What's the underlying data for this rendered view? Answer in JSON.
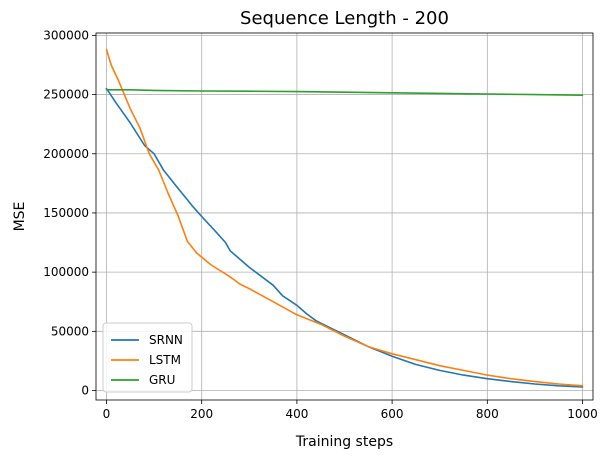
{
  "chart_data": {
    "type": "line",
    "title": "Sequence Length - 200",
    "xlabel": "Training steps",
    "ylabel": "MSE",
    "xlim": [
      -22,
      1022
    ],
    "ylim": [
      -8000,
      302000
    ],
    "xticks": [
      0,
      200,
      400,
      600,
      800,
      1000
    ],
    "yticks": [
      0,
      50000,
      100000,
      150000,
      200000,
      250000,
      300000
    ],
    "xtick_labels": [
      "0",
      "200",
      "400",
      "600",
      "800",
      "1000"
    ],
    "ytick_labels": [
      "0",
      "50000",
      "100000",
      "150000",
      "200000",
      "250000",
      "300000"
    ],
    "grid": true,
    "legend": {
      "position": "lower-left"
    },
    "series": [
      {
        "name": "SRNN",
        "color": "#1f77b4",
        "x": [
          0,
          20,
          50,
          80,
          100,
          120,
          150,
          180,
          200,
          230,
          250,
          260,
          300,
          350,
          370,
          400,
          420,
          440,
          470,
          500,
          550,
          600,
          650,
          700,
          750,
          800,
          850,
          900,
          950,
          1000
        ],
        "y": [
          255000,
          243000,
          226000,
          207000,
          200000,
          186000,
          171000,
          156000,
          147000,
          134000,
          125000,
          118000,
          104000,
          89000,
          80000,
          72000,
          65000,
          59000,
          53000,
          47000,
          37000,
          29000,
          22000,
          17000,
          13000,
          10000,
          7500,
          5500,
          4000,
          3000
        ]
      },
      {
        "name": "LSTM",
        "color": "#ff7f0e",
        "x": [
          0,
          10,
          25,
          50,
          70,
          90,
          110,
          130,
          150,
          170,
          190,
          220,
          260,
          280,
          300,
          350,
          400,
          450,
          500,
          550,
          600,
          650,
          700,
          750,
          800,
          850,
          900,
          950,
          1000
        ],
        "y": [
          288000,
          275000,
          262000,
          238000,
          222000,
          200000,
          186000,
          166000,
          148000,
          126000,
          116000,
          106000,
          96000,
          90000,
          86000,
          75000,
          64000,
          56000,
          46000,
          37000,
          31000,
          26000,
          21000,
          17000,
          13000,
          10000,
          7500,
          5500,
          4000
        ]
      },
      {
        "name": "GRU",
        "color": "#2ca02c",
        "x": [
          0,
          50,
          100,
          200,
          300,
          400,
          500,
          600,
          700,
          800,
          900,
          1000
        ],
        "y": [
          254000,
          254000,
          253500,
          253000,
          252800,
          252500,
          252000,
          251500,
          251000,
          250500,
          250000,
          249500
        ]
      }
    ]
  }
}
